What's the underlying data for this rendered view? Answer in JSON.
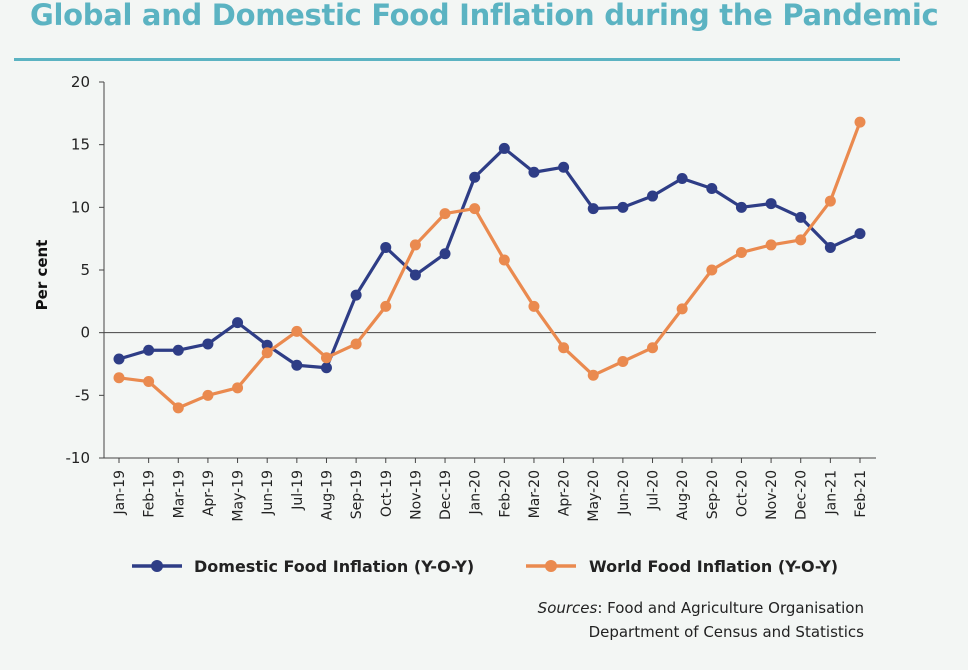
{
  "title": "Global and Domestic Food Inflation during the Pandemic",
  "chart_data": {
    "type": "line",
    "title": "Global and Domestic Food Inflation during the Pandemic",
    "xlabel": "",
    "ylabel": "Per cent",
    "ylim": [
      -10,
      20
    ],
    "yticks": [
      20,
      15,
      10,
      5,
      0,
      -5,
      -10
    ],
    "grid": false,
    "legend_position": "bottom",
    "categories": [
      "Jan-19",
      "Feb-19",
      "Mar-19",
      "Apr-19",
      "May-19",
      "Jun-19",
      "Jul-19",
      "Aug-19",
      "Sep-19",
      "Oct-19",
      "Nov-19",
      "Dec-19",
      "Jan-20",
      "Feb-20",
      "Mar-20",
      "Apr-20",
      "May-20",
      "Jun-20",
      "Jul-20",
      "Aug-20",
      "Sep-20",
      "Oct-20",
      "Nov-20",
      "Dec-20",
      "Jan-21",
      "Feb-21"
    ],
    "series": [
      {
        "name": "Domestic Food Inflation (Y-O-Y)",
        "color": "#2e3d86",
        "values": [
          -2.1,
          -1.4,
          -1.4,
          -0.9,
          0.8,
          -1.0,
          -2.6,
          -2.8,
          3.0,
          6.8,
          4.6,
          6.3,
          12.4,
          14.7,
          12.8,
          13.2,
          9.9,
          10.0,
          10.9,
          12.3,
          11.5,
          10.0,
          10.3,
          9.2,
          6.8,
          7.9
        ]
      },
      {
        "name": "World Food Inflation (Y-O-Y)",
        "color": "#ea8a4f",
        "values": [
          -3.6,
          -3.9,
          -6.0,
          -5.0,
          -4.4,
          -1.6,
          0.1,
          -2.0,
          -0.9,
          2.1,
          7.0,
          9.5,
          9.9,
          5.8,
          2.1,
          -1.2,
          -3.4,
          -2.3,
          -1.2,
          1.9,
          5.0,
          6.4,
          7.0,
          7.4,
          10.5,
          16.8
        ]
      }
    ]
  },
  "sources": {
    "label": "Sources",
    "line1": ": Food and Agriculture Organisation",
    "line2": "Department of Census and Statistics"
  }
}
